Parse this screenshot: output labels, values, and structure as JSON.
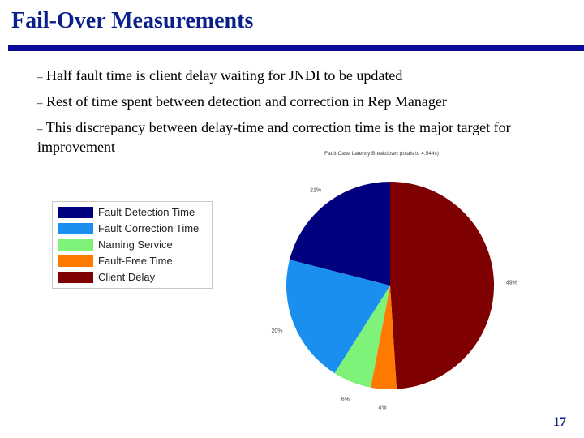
{
  "slide": {
    "title": "Fail-Over Measurements",
    "bullets": [
      "Half fault time is client delay waiting for JNDI to be updated",
      "Rest of time spent between detection and correction in Rep Manager",
      "This discrepancy between delay-time and correction time is the major target for improvement"
    ],
    "bullet_marker": "–",
    "page_number": "17"
  },
  "chart_data": {
    "type": "pie",
    "title": "Fault-Case Latency Breakdown (totals to 4.544s)",
    "categories": [
      "Fault Detection Time",
      "Fault Correction Time",
      "Naming Service",
      "Fault-Free Time",
      "Client Delay"
    ],
    "values": [
      21,
      20,
      6,
      4,
      49
    ],
    "value_labels": [
      "21%",
      "20%",
      "6%",
      "4%",
      "49%"
    ],
    "colors": [
      "#00007f",
      "#1a8ff0",
      "#7ff27a",
      "#ff7a00",
      "#7f0000"
    ],
    "legend_placement": "left"
  }
}
